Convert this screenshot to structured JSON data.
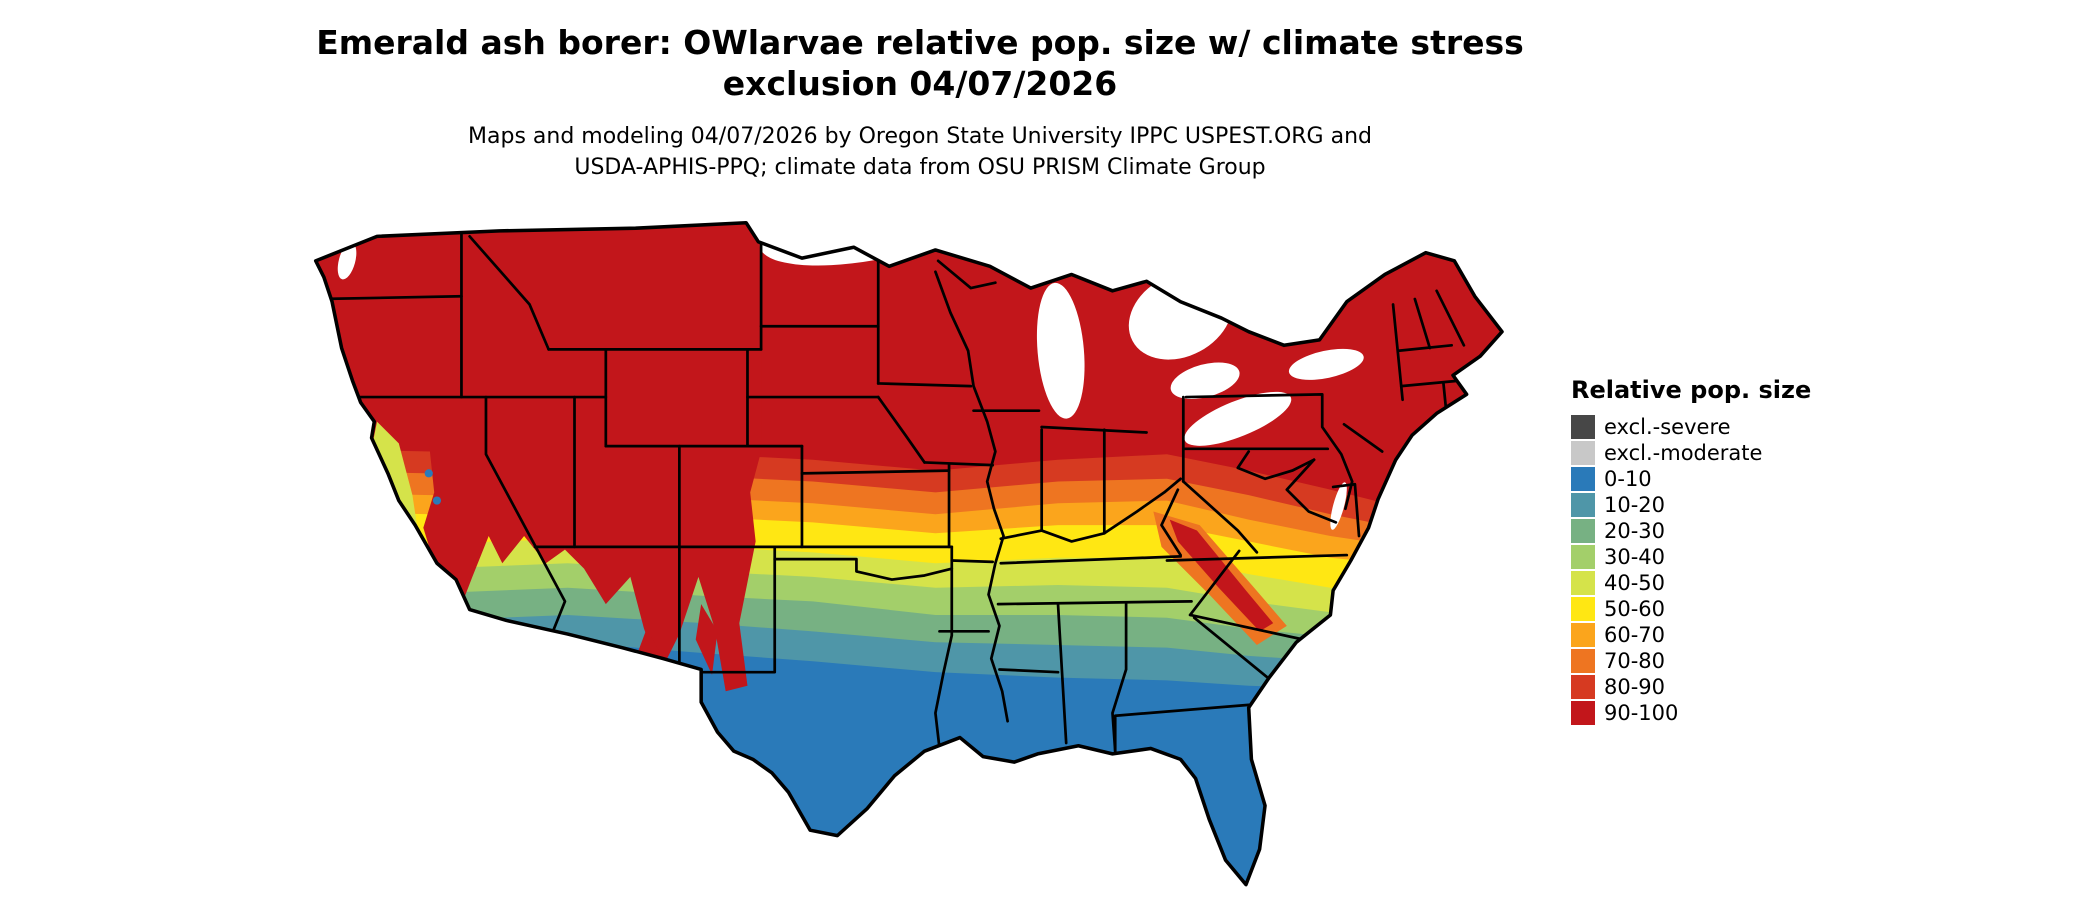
{
  "header": {
    "title_line1": "Emerald ash borer: OWlarvae relative pop. size w/ climate stress",
    "title_line2": "exclusion 04/07/2026",
    "subtitle_line1": "Maps and modeling 04/07/2026 by Oregon State University IPPC USPEST.ORG and",
    "subtitle_line2": "USDA-APHIS-PPQ; climate data from OSU PRISM Climate Group"
  },
  "legend": {
    "title": "Relative pop. size",
    "items": [
      {
        "label": "excl.-severe",
        "color": "#474747"
      },
      {
        "label": "excl.-moderate",
        "color": "#c8c8c8"
      },
      {
        "label": "0-10",
        "color": "#2a7ab9"
      },
      {
        "label": "10-20",
        "color": "#4f96a8"
      },
      {
        "label": "20-30",
        "color": "#77b183"
      },
      {
        "label": "30-40",
        "color": "#a3cf6a"
      },
      {
        "label": "40-50",
        "color": "#d5e34a"
      },
      {
        "label": "50-60",
        "color": "#ffe713"
      },
      {
        "label": "60-70",
        "color": "#fba51c"
      },
      {
        "label": "70-80",
        "color": "#ee7521"
      },
      {
        "label": "80-90",
        "color": "#d63a21"
      },
      {
        "label": "90-100",
        "color": "#c2161b"
      }
    ]
  },
  "map": {
    "water_color": "#ffffff",
    "state_border_color": "#000000"
  }
}
